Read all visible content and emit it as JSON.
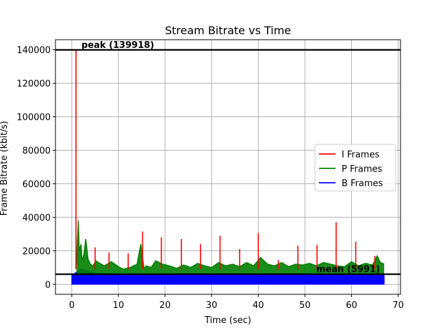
{
  "chart_data": {
    "type": "line",
    "title": "Stream Bitrate vs Time",
    "xlabel": "Time (sec)",
    "ylabel": "Frame Bitrate (kbit/s)",
    "xlim": [
      -3.5,
      70.5
    ],
    "ylim": [
      -6000,
      146000
    ],
    "xticks": [
      0,
      10,
      20,
      30,
      40,
      50,
      60,
      70
    ],
    "xtick_labels": [
      "0",
      "10",
      "20",
      "30",
      "40",
      "50",
      "60",
      "70"
    ],
    "yticks": [
      0,
      20000,
      40000,
      60000,
      80000,
      100000,
      120000,
      140000
    ],
    "ytick_labels": [
      "0",
      "20000",
      "40000",
      "60000",
      "80000",
      "100000",
      "120000",
      "140000"
    ],
    "grid": true,
    "legend_position": "center-right",
    "series": [
      {
        "name": "I Frames",
        "color": "#ff0000",
        "style": "spikes",
        "x": [
          0.9,
          5.0,
          8.0,
          12.1,
          15.2,
          19.2,
          23.5,
          27.6,
          31.8,
          36.0,
          40.0,
          44.3,
          48.5,
          52.6,
          56.7,
          60.9,
          65.0
        ],
        "y": [
          139918,
          22000,
          19000,
          18500,
          31500,
          28000,
          27000,
          24000,
          29000,
          21000,
          30500,
          14500,
          23000,
          23500,
          37000,
          25500,
          17000
        ]
      },
      {
        "name": "P Frames",
        "color": "#008000",
        "style": "dense-line",
        "x": [
          1.0,
          1.4,
          1.6,
          2.0,
          2.2,
          2.6,
          3.0,
          3.5,
          4.0,
          4.5,
          5.2,
          6.0,
          7.0,
          8.5,
          10.0,
          11.0,
          12.5,
          14.0,
          14.8,
          15.5,
          16.0,
          17.0,
          18.0,
          19.5,
          21.0,
          22.5,
          24.0,
          25.5,
          27.0,
          28.5,
          30.0,
          31.5,
          33.0,
          34.5,
          36.0,
          37.5,
          39.0,
          40.5,
          42.0,
          43.5,
          45.0,
          46.5,
          48.0,
          49.5,
          51.0,
          52.5,
          54.0,
          55.5,
          57.0,
          58.5,
          60.0,
          61.5,
          63.0,
          64.5,
          65.5,
          66.2,
          67.0
        ],
        "y": [
          12000,
          38000,
          20000,
          24000,
          14000,
          18000,
          27000,
          15000,
          12000,
          11000,
          14000,
          12500,
          11000,
          13500,
          10500,
          9000,
          10000,
          12000,
          24000,
          9500,
          11000,
          10000,
          14000,
          12000,
          11000,
          9500,
          11500,
          10000,
          12500,
          11000,
          10000,
          13000,
          11000,
          12000,
          10500,
          13000,
          11000,
          16000,
          12000,
          11000,
          13000,
          10500,
          12000,
          11500,
          12500,
          11000,
          13000,
          12000,
          11000,
          10500,
          13500,
          11000,
          12500,
          11500,
          17000,
          13000,
          12000
        ]
      },
      {
        "name": "B Frames",
        "color": "#0000ff",
        "style": "filled-band",
        "x": [
          0,
          2,
          5,
          10,
          15,
          20,
          25,
          30,
          35,
          40,
          45,
          50,
          55,
          60,
          65,
          67
        ],
        "y": [
          5500,
          9000,
          6500,
          6000,
          5800,
          6200,
          6000,
          5900,
          6100,
          6000,
          6300,
          5800,
          6000,
          6100,
          6200,
          6000
        ]
      }
    ],
    "reference_lines": [
      {
        "label": "peak (139918)",
        "value": 139918
      },
      {
        "label": "mean (5991)",
        "value": 5991
      }
    ]
  }
}
